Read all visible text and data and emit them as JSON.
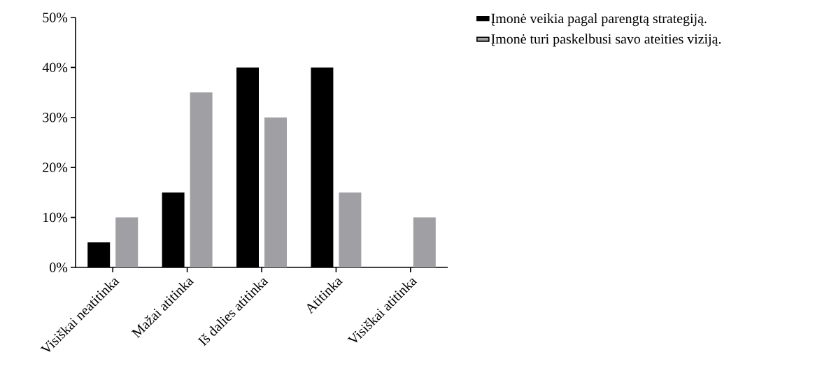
{
  "chart_data": {
    "type": "bar",
    "categories": [
      "Visiškai neatitinka",
      "Mažai atitinka",
      "Iš dalies atitinka",
      "Atitinka",
      "Visiškai atitinka"
    ],
    "series": [
      {
        "name": "Įmonė veikia pagal parengtą strategiją.",
        "color": "#000000",
        "values": [
          5,
          15,
          40,
          40,
          0
        ]
      },
      {
        "name": "Įmonė turi paskelbusi savo ateities viziją.",
        "color": "#a0a0a4",
        "values": [
          10,
          35,
          30,
          15,
          10
        ]
      }
    ],
    "ylim": [
      0,
      50
    ],
    "yticks": [
      {
        "value": 0,
        "label": "0%"
      },
      {
        "value": 10,
        "label": "10%"
      },
      {
        "value": 20,
        "label": "20%"
      },
      {
        "value": 30,
        "label": "30%"
      },
      {
        "value": 40,
        "label": "40%"
      },
      {
        "value": 50,
        "label": "50%"
      }
    ],
    "grid": false,
    "legend": "top right"
  }
}
